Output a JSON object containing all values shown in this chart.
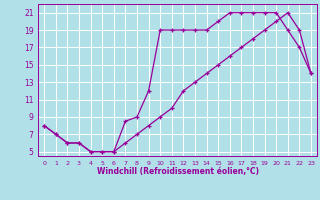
{
  "xlabel": "Windchill (Refroidissement éolien,°C)",
  "bg_color": "#b2e0e8",
  "grid_color": "#ffffff",
  "line_color": "#990099",
  "xlim": [
    -0.5,
    23.5
  ],
  "ylim": [
    4.5,
    22
  ],
  "xticks": [
    0,
    1,
    2,
    3,
    4,
    5,
    6,
    7,
    8,
    9,
    10,
    11,
    12,
    13,
    14,
    15,
    16,
    17,
    18,
    19,
    20,
    21,
    22,
    23
  ],
  "yticks": [
    5,
    7,
    9,
    11,
    13,
    15,
    17,
    19,
    21
  ],
  "line1_x": [
    0,
    1,
    2,
    3,
    4,
    5,
    6,
    7,
    8,
    9,
    10,
    11,
    12,
    13,
    14,
    15,
    16,
    17,
    18,
    19,
    20,
    21,
    22,
    23
  ],
  "line1_y": [
    8,
    7,
    6,
    6,
    5,
    5,
    5,
    8.5,
    9,
    12,
    19,
    19,
    19,
    19,
    19,
    20,
    21,
    21,
    21,
    21,
    21,
    19,
    17,
    14
  ],
  "line2_x": [
    0,
    1,
    2,
    3,
    4,
    5,
    6,
    7,
    8,
    9,
    10,
    11,
    12,
    13,
    14,
    15,
    16,
    17,
    18,
    19,
    20,
    21,
    22,
    23
  ],
  "line2_y": [
    8,
    7,
    6,
    6,
    5,
    5,
    5,
    6,
    7,
    8,
    9,
    10,
    12,
    13,
    14,
    15,
    16,
    17,
    18,
    19,
    20,
    21,
    19,
    14
  ]
}
